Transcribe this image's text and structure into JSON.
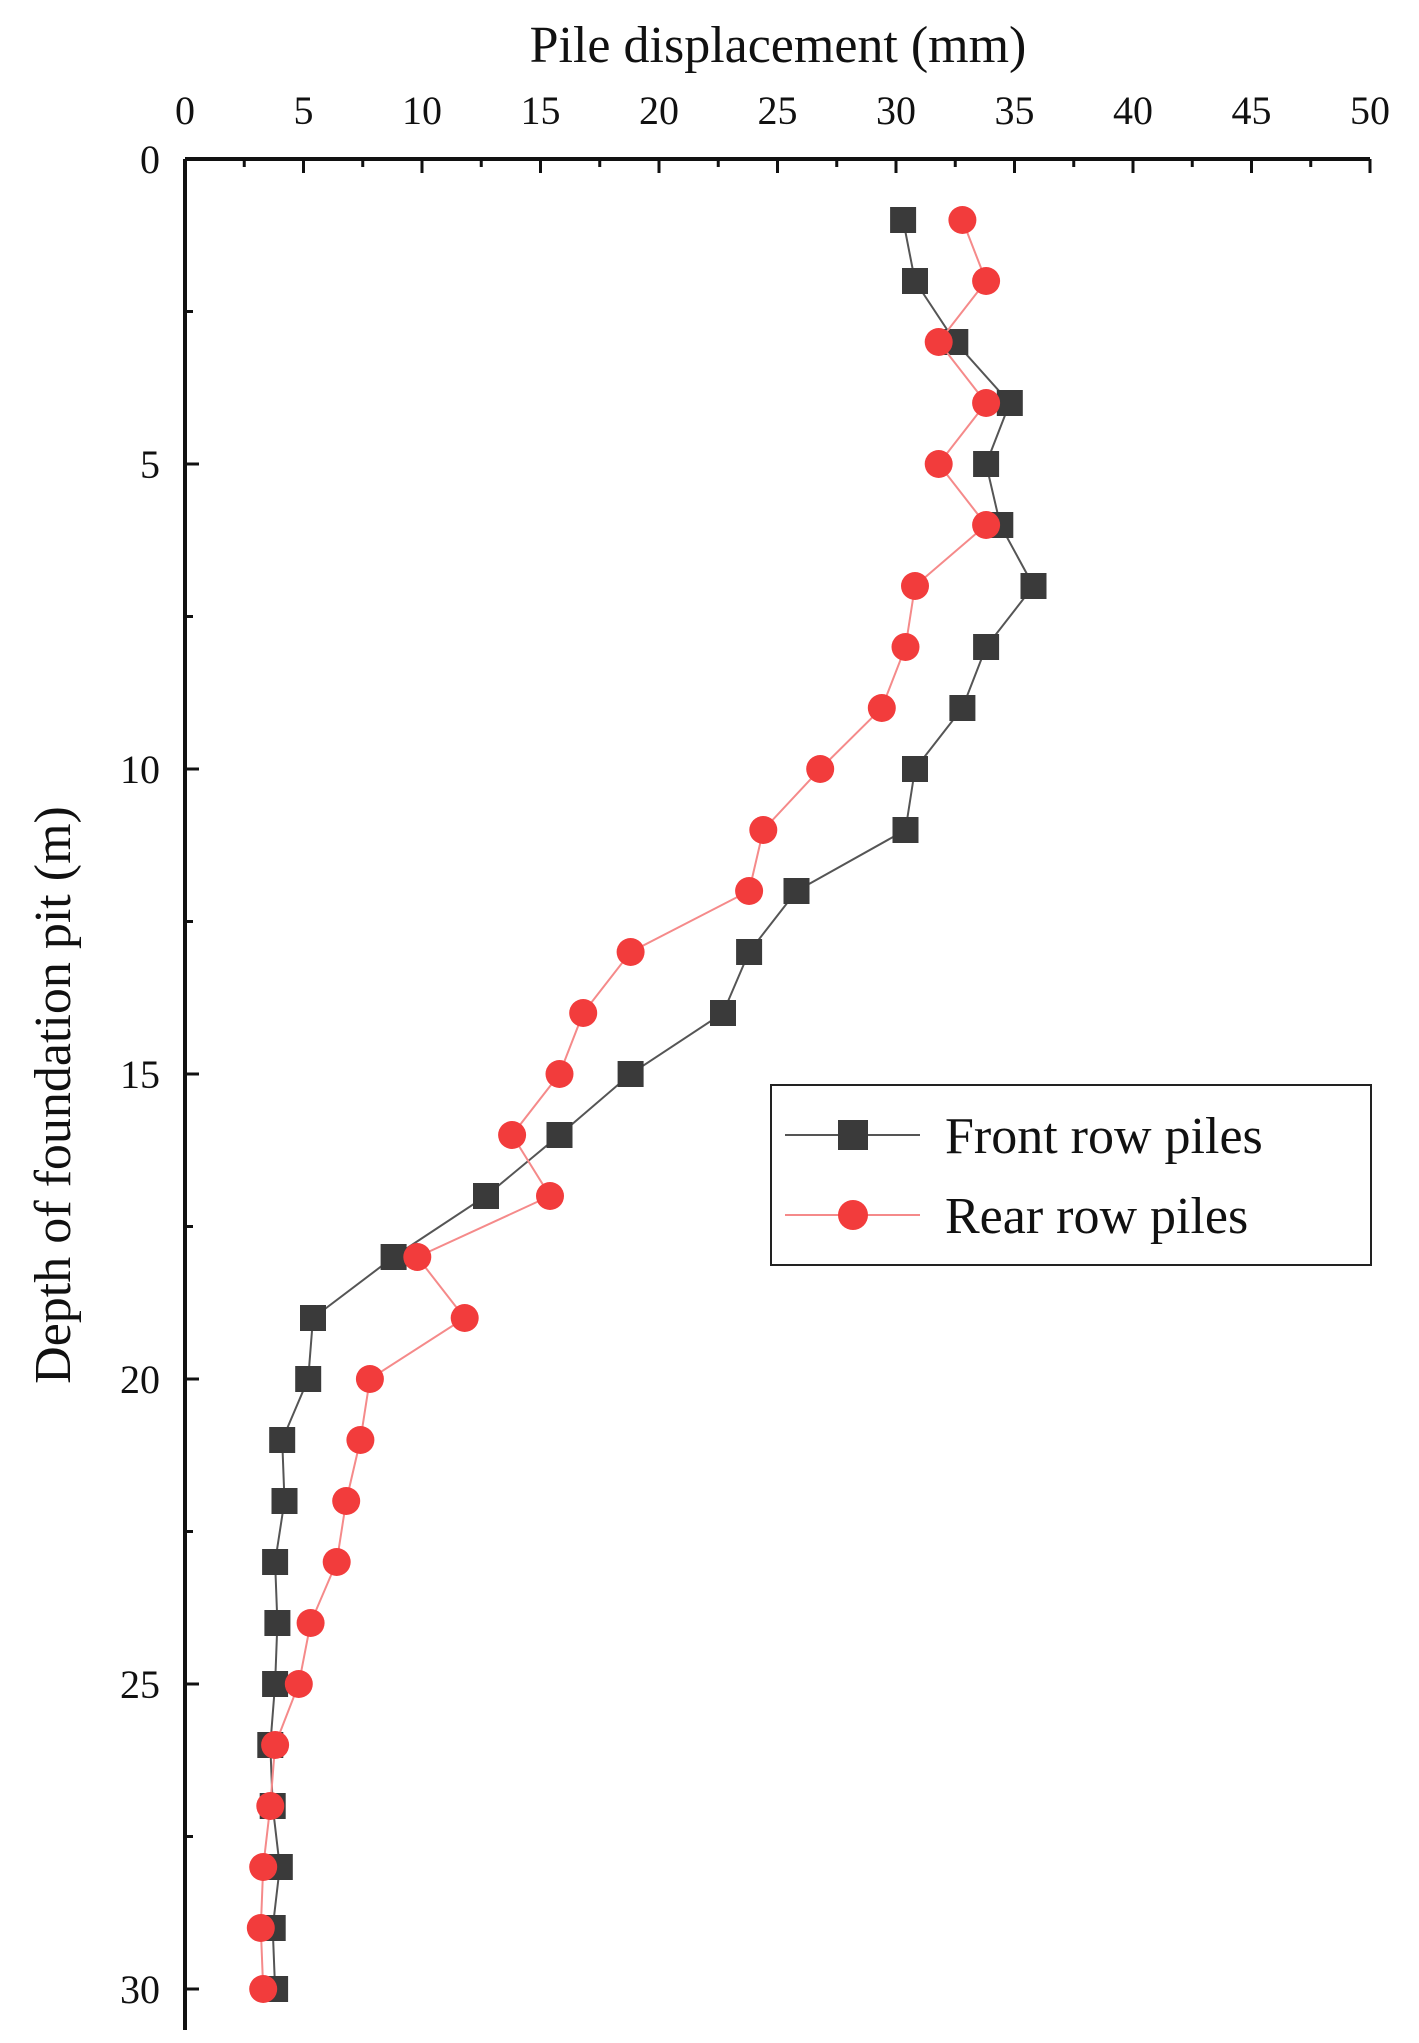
{
  "chart_data": {
    "type": "line",
    "title": "",
    "xlabel": "Pile displacement (mm)",
    "ylabel": "Depth of foundation pit (m)",
    "xlim": [
      0,
      50
    ],
    "ylim": [
      0,
      30
    ],
    "x_ticks": [
      0,
      5,
      10,
      15,
      20,
      25,
      30,
      35,
      40,
      45,
      50
    ],
    "y_ticks": [
      0,
      5,
      10,
      15,
      20,
      25,
      30
    ],
    "x_tick_labels": [
      "0",
      "5",
      "10",
      "15",
      "20",
      "25",
      "30",
      "35",
      "40",
      "45",
      "50"
    ],
    "y_tick_labels": [
      "0",
      "5",
      "10",
      "15",
      "20",
      "25",
      "30"
    ],
    "x_axis_position": "top",
    "y_axis_inverted": true,
    "grid": false,
    "legend_position": "center-right",
    "series": [
      {
        "name": "Front row piles",
        "marker": "square",
        "color": "#3a3a3a",
        "line_color": "#555555",
        "points": [
          [
            30.3,
            1
          ],
          [
            30.8,
            2
          ],
          [
            32.5,
            3
          ],
          [
            34.8,
            4
          ],
          [
            33.8,
            5
          ],
          [
            34.4,
            6
          ],
          [
            35.8,
            7
          ],
          [
            33.8,
            8
          ],
          [
            32.8,
            9
          ],
          [
            30.8,
            10
          ],
          [
            30.4,
            11
          ],
          [
            25.8,
            12
          ],
          [
            23.8,
            13
          ],
          [
            22.7,
            14
          ],
          [
            18.8,
            15
          ],
          [
            15.8,
            16
          ],
          [
            12.7,
            17
          ],
          [
            8.8,
            18
          ],
          [
            5.4,
            19
          ],
          [
            5.2,
            20
          ],
          [
            4.1,
            21
          ],
          [
            4.2,
            22
          ],
          [
            3.8,
            23
          ],
          [
            3.9,
            24
          ],
          [
            3.8,
            25
          ],
          [
            3.6,
            26
          ],
          [
            3.7,
            27
          ],
          [
            4.0,
            28
          ],
          [
            3.7,
            29
          ],
          [
            3.8,
            30
          ]
        ]
      },
      {
        "name": "Rear row piles",
        "marker": "circle",
        "color": "#f23c3c",
        "line_color": "#f58a8a",
        "points": [
          [
            32.8,
            1
          ],
          [
            33.8,
            2
          ],
          [
            31.8,
            3
          ],
          [
            33.8,
            4
          ],
          [
            31.8,
            5
          ],
          [
            33.8,
            6
          ],
          [
            30.8,
            7
          ],
          [
            30.4,
            8
          ],
          [
            29.4,
            9
          ],
          [
            26.8,
            10
          ],
          [
            24.4,
            11
          ],
          [
            23.8,
            12
          ],
          [
            18.8,
            13
          ],
          [
            16.8,
            14
          ],
          [
            15.8,
            15
          ],
          [
            13.8,
            16
          ],
          [
            15.4,
            17
          ],
          [
            9.8,
            18
          ],
          [
            11.8,
            19
          ],
          [
            7.8,
            20
          ],
          [
            7.4,
            21
          ],
          [
            6.8,
            22
          ],
          [
            6.4,
            23
          ],
          [
            5.3,
            24
          ],
          [
            4.8,
            25
          ],
          [
            3.8,
            26
          ],
          [
            3.6,
            27
          ],
          [
            3.3,
            28
          ],
          [
            3.2,
            29
          ],
          [
            3.3,
            30
          ]
        ]
      }
    ]
  }
}
